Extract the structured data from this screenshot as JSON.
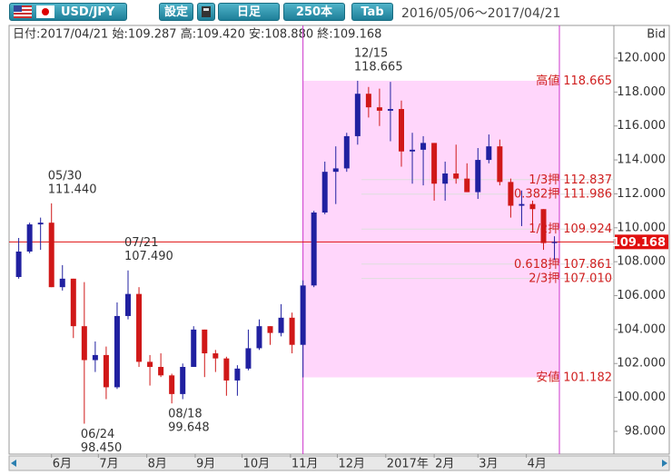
{
  "toolbar": {
    "pair": "USD/JPY",
    "settings": "設定",
    "period": "日足",
    "count": "250本",
    "tab": "Tab",
    "range": "2016/05/06～2017/04/21"
  },
  "chart_data": {
    "type": "candlestick",
    "info": "日付:2017/04/21 始:109.287 高:109.420 安:108.880 終:109.168",
    "axis_label": "Bid",
    "up_color": "#2020a0",
    "down_color": "#d01818",
    "range_color": "#ffd6fb",
    "range_line_color": "#cc33cc",
    "xlim": [
      "2016-05-06",
      "2017-04-21"
    ],
    "xticks": [
      {
        "value": "2016-06-01",
        "label": "6月"
      },
      {
        "value": "2016-07-01",
        "label": "7月"
      },
      {
        "value": "2016-08-01",
        "label": "8月"
      },
      {
        "value": "2016-09-01",
        "label": "9月"
      },
      {
        "value": "2016-10-01",
        "label": "10月"
      },
      {
        "value": "2016-11-01",
        "label": "11月"
      },
      {
        "value": "2016-12-01",
        "label": "12月"
      },
      {
        "value": "2017-01-01",
        "label": "2017年"
      },
      {
        "value": "2017-02-01",
        "label": "2月"
      },
      {
        "value": "2017-03-01",
        "label": "3月"
      },
      {
        "value": "2017-04-01",
        "label": "4月"
      }
    ],
    "ylim": [
      96.66,
      121.82
    ],
    "yticks": [
      {
        "value": 98,
        "label": "98.000"
      },
      {
        "value": 100,
        "label": "100.000"
      },
      {
        "value": 102,
        "label": "102.000"
      },
      {
        "value": 104,
        "label": "104.000"
      },
      {
        "value": 106,
        "label": "106.000"
      },
      {
        "value": 108,
        "label": "108.000"
      },
      {
        "value": 110,
        "label": "110.000"
      },
      {
        "value": 112,
        "label": "112.000"
      },
      {
        "value": 114,
        "label": "114.000"
      },
      {
        "value": 116,
        "label": "116.000"
      },
      {
        "value": 118,
        "label": "118.000"
      },
      {
        "value": 120,
        "label": "120.000"
      }
    ],
    "x": [
      "2016-05-11",
      "2016-05-18",
      "2016-05-25",
      "2016-06-01",
      "2016-06-08",
      "2016-06-15",
      "2016-06-22",
      "2016-06-29",
      "2016-07-06",
      "2016-07-13",
      "2016-07-20",
      "2016-07-27",
      "2016-08-03",
      "2016-08-10",
      "2016-08-17",
      "2016-08-24",
      "2016-08-31",
      "2016-09-07",
      "2016-09-14",
      "2016-09-21",
      "2016-09-28",
      "2016-10-05",
      "2016-10-12",
      "2016-10-19",
      "2016-10-26",
      "2016-11-02",
      "2016-11-09",
      "2016-11-16",
      "2016-11-23",
      "2016-11-30",
      "2016-12-07",
      "2016-12-14",
      "2016-12-21",
      "2016-12-28",
      "2017-01-04",
      "2017-01-11",
      "2017-01-18",
      "2017-01-25",
      "2017-02-01",
      "2017-02-08",
      "2017-02-15",
      "2017-02-22",
      "2017-03-01",
      "2017-03-08",
      "2017-03-15",
      "2017-03-22",
      "2017-03-29",
      "2017-04-05",
      "2017-04-12",
      "2017-04-19"
    ],
    "open": [
      107.1,
      108.6,
      110.2,
      110.3,
      106.5,
      107.0,
      104.2,
      102.2,
      102.5,
      100.6,
      104.8,
      106.1,
      102.1,
      101.8,
      101.3,
      100.2,
      101.8,
      104.0,
      102.6,
      102.3,
      101.0,
      101.7,
      102.9,
      104.2,
      103.8,
      104.7,
      103.1,
      106.6,
      110.9,
      113.3,
      113.5,
      115.4,
      117.9,
      117.1,
      116.9,
      117.0,
      114.5,
      114.6,
      115.0,
      112.6,
      113.2,
      112.9,
      112.1,
      114.0,
      114.8,
      112.7,
      111.3,
      111.4,
      111.1,
      109.1
    ],
    "high": [
      109.4,
      110.3,
      110.6,
      111.44,
      107.8,
      107.0,
      106.8,
      103.3,
      103.0,
      105.6,
      107.49,
      106.5,
      102.5,
      102.6,
      101.4,
      102.0,
      104.2,
      104.0,
      102.8,
      102.4,
      101.9,
      104.0,
      104.6,
      104.2,
      105.5,
      105.0,
      106.9,
      111.0,
      113.9,
      114.8,
      115.6,
      118.665,
      118.3,
      118.2,
      118.6,
      117.5,
      115.6,
      115.4,
      115.0,
      113.9,
      114.9,
      113.8,
      114.7,
      115.5,
      115.2,
      112.9,
      112.2,
      111.6,
      111.1,
      109.5
    ],
    "low": [
      107.0,
      108.5,
      108.7,
      106.5,
      106.3,
      103.5,
      98.45,
      101.5,
      99.9,
      100.5,
      104.6,
      101.8,
      100.7,
      101.2,
      99.648,
      99.9,
      101.8,
      101.2,
      101.5,
      100.1,
      100.1,
      101.6,
      102.8,
      103.1,
      103.6,
      102.6,
      101.182,
      106.5,
      110.8,
      111.4,
      113.3,
      114.9,
      116.5,
      116.0,
      115.1,
      113.6,
      112.6,
      112.5,
      111.6,
      111.6,
      112.6,
      112.1,
      111.7,
      113.8,
      112.5,
      110.6,
      110.1,
      110.1,
      108.7,
      108.1
    ],
    "close": [
      108.6,
      110.2,
      110.3,
      106.5,
      107.0,
      104.2,
      102.2,
      102.5,
      100.6,
      104.8,
      106.1,
      102.1,
      101.8,
      101.3,
      100.2,
      101.8,
      104.0,
      102.6,
      102.3,
      101.0,
      101.7,
      102.9,
      104.2,
      103.8,
      104.7,
      103.1,
      106.6,
      110.9,
      113.3,
      113.5,
      115.4,
      117.9,
      117.1,
      116.9,
      117.0,
      114.5,
      114.6,
      115.0,
      112.6,
      113.2,
      112.9,
      112.1,
      114.0,
      114.8,
      112.7,
      111.3,
      111.4,
      111.1,
      109.1,
      109.168
    ],
    "annotations": [
      {
        "date": "05/30",
        "value": 111.44,
        "label": "111.440"
      },
      {
        "date": "06/24",
        "value": 98.45,
        "label": "98.450"
      },
      {
        "date": "07/21",
        "value": 107.49,
        "label": "107.490"
      },
      {
        "date": "08/18",
        "value": 99.648,
        "label": "99.648"
      },
      {
        "date": "12/15",
        "value": 118.665,
        "label": "118.665"
      }
    ],
    "levels": [
      {
        "name": "高値",
        "value": 118.665,
        "label": "118.665"
      },
      {
        "name": "1/3押",
        "value": 112.837,
        "label": "112.837"
      },
      {
        "name": "0.382押",
        "value": 111.986,
        "label": "111.986"
      },
      {
        "name": "1/2押",
        "value": 109.924,
        "label": "109.924"
      },
      {
        "name": "0.618押",
        "value": 107.861,
        "label": "107.861"
      },
      {
        "name": "2/3押",
        "value": 107.01,
        "label": "107.010"
      },
      {
        "name": "安値",
        "value": 101.182,
        "label": "101.182"
      }
    ],
    "current": {
      "value": 109.168,
      "label": "109.168",
      "color": "#e01010"
    }
  }
}
